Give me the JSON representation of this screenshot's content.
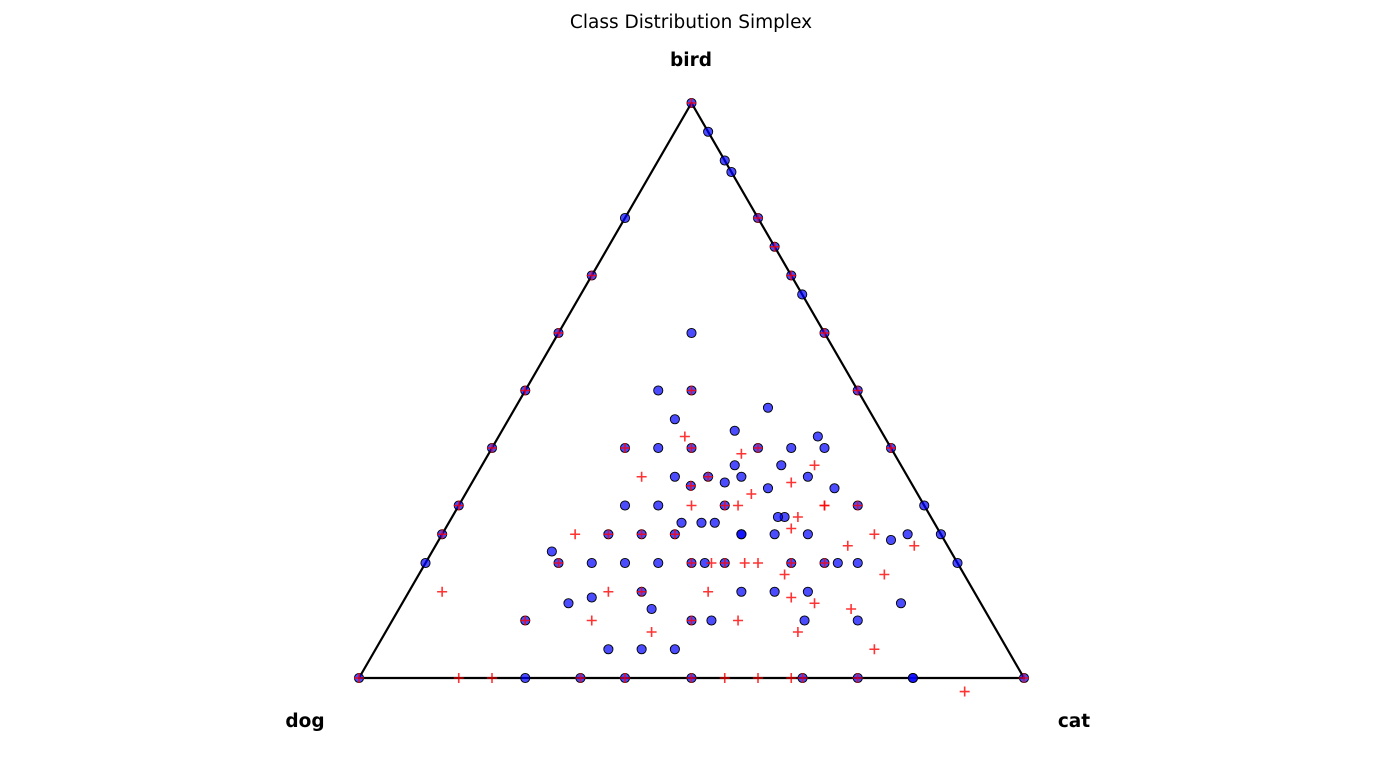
{
  "chart_data": {
    "type": "scatter",
    "plot": "ternary",
    "title": "Class Distribution Simplex",
    "vertices": {
      "top": "bird",
      "left": "dog",
      "right": "cat"
    },
    "coordinate_order": [
      "dog",
      "cat",
      "bird"
    ],
    "colors": {
      "circle_fill": "#0000ff",
      "circle_edge": "#000000",
      "cross": "#ff0000",
      "edge": "#000000"
    },
    "series": [
      {
        "marker": "circle",
        "points": [
          [
            0,
            0,
            1
          ],
          [
            0.5,
            0,
            0.5
          ],
          [
            0.4,
            0,
            0.6
          ],
          [
            0.2,
            0,
            0.8
          ],
          [
            0.3,
            0,
            0.7
          ],
          [
            0.7,
            0,
            0.3
          ],
          [
            0.75,
            0,
            0.25
          ],
          [
            0.6,
            0,
            0.4
          ],
          [
            0.8,
            0,
            0.2
          ],
          [
            1,
            0,
            0
          ],
          [
            0.75,
            0.25,
            0
          ],
          [
            0.667,
            0.333,
            0
          ],
          [
            0.6,
            0.4,
            0
          ],
          [
            0.5,
            0.5,
            0
          ],
          [
            0.333,
            0.667,
            0
          ],
          [
            0.25,
            0.75,
            0
          ],
          [
            0.167,
            0.833,
            0
          ],
          [
            0,
            1,
            0
          ],
          [
            0,
            0.8,
            0.2
          ],
          [
            0,
            0.75,
            0.25
          ],
          [
            0,
            0.7,
            0.3
          ],
          [
            0,
            0.6,
            0.4
          ],
          [
            0,
            0.5,
            0.5
          ],
          [
            0,
            0.4,
            0.6
          ],
          [
            0,
            0.333,
            0.667
          ],
          [
            0,
            0.25,
            0.75
          ],
          [
            0,
            0.2,
            0.8
          ],
          [
            0.167,
            0.833,
            0
          ],
          [
            0,
            0.3,
            0.7
          ],
          [
            0,
            0.1,
            0.9
          ],
          [
            0,
            0.05,
            0.95
          ],
          [
            0,
            0.12,
            0.88
          ],
          [
            0.25,
            0.25,
            0.5
          ],
          [
            0.2,
            0.4,
            0.4
          ],
          [
            0.333,
            0.333,
            0.333
          ],
          [
            0.4,
            0.4,
            0.2
          ],
          [
            0.6,
            0.2,
            0.2
          ],
          [
            0.7,
            0.2,
            0.1
          ],
          [
            0.4,
            0.2,
            0.4
          ],
          [
            0.5,
            0.25,
            0.25
          ],
          [
            0.3,
            0.3,
            0.4
          ],
          [
            0.1,
            0.5,
            0.4
          ],
          [
            0.2,
            0.2,
            0.6
          ],
          [
            0.3,
            0.2,
            0.5
          ],
          [
            0.15,
            0.45,
            0.4
          ],
          [
            0.25,
            0.5,
            0.25
          ],
          [
            0.45,
            0.35,
            0.2
          ],
          [
            0.35,
            0.45,
            0.2
          ],
          [
            0.5,
            0.45,
            0.05
          ],
          [
            0.3,
            0.45,
            0.25
          ],
          [
            0.2,
            0.55,
            0.25
          ],
          [
            0.1,
            0.6,
            0.3
          ],
          [
            0.15,
            0.65,
            0.2
          ],
          [
            0.25,
            0.6,
            0.15
          ],
          [
            0.35,
            0.5,
            0.15
          ],
          [
            0.2,
            0.6,
            0.2
          ],
          [
            0.22,
            0.5,
            0.28
          ],
          [
            0.28,
            0.38,
            0.34
          ],
          [
            0.4,
            0.3,
            0.3
          ],
          [
            0.33,
            0.4,
            0.27
          ],
          [
            0.5,
            0.3,
            0.2
          ],
          [
            0.6,
            0.35,
            0.05
          ],
          [
            0.45,
            0.45,
            0.1
          ],
          [
            0.5,
            0.38,
            0.12
          ],
          [
            0.55,
            0.4,
            0.05
          ],
          [
            0.12,
            0.75,
            0.13
          ],
          [
            0.2,
            0.7,
            0.1
          ],
          [
            0.18,
            0.62,
            0.2
          ],
          [
            0.3,
            0.55,
            0.15
          ],
          [
            0.38,
            0.42,
            0.2
          ],
          [
            0.42,
            0.48,
            0.1
          ],
          [
            0.28,
            0.62,
            0.1
          ],
          [
            0.3,
            0.35,
            0.35
          ],
          [
            0.45,
            0.25,
            0.3
          ],
          [
            0.25,
            0.4,
            0.35
          ],
          [
            0.35,
            0.3,
            0.35
          ],
          [
            0.4,
            0.35,
            0.25
          ],
          [
            0.55,
            0.25,
            0.2
          ],
          [
            0.35,
            0.38,
            0.27
          ],
          [
            0.3,
            0.4,
            0.3
          ],
          [
            0.22,
            0.45,
            0.33
          ],
          [
            0.12,
            0.55,
            0.33
          ],
          [
            0.25,
            0.55,
            0.2
          ],
          [
            0.38,
            0.35,
            0.27
          ],
          [
            0.45,
            0.3,
            0.25
          ],
          [
            0.5,
            0.35,
            0.15
          ],
          [
            0.62,
            0.25,
            0.13
          ],
          [
            0.3,
            0.45,
            0.25
          ],
          [
            0.22,
            0.35,
            0.43
          ],
          [
            0.15,
            0.38,
            0.47
          ],
          [
            0.18,
            0.45,
            0.37
          ],
          [
            0.3,
            0.25,
            0.45
          ],
          [
            0.25,
            0.38,
            0.37
          ],
          [
            0.6,
            0.18,
            0.22
          ],
          [
            0.35,
            0.25,
            0.4
          ],
          [
            0.58,
            0.28,
            0.14
          ],
          [
            0.23,
            0.49,
            0.28
          ],
          [
            0.08,
            0.68,
            0.24
          ],
          [
            0.05,
            0.7,
            0.25
          ],
          [
            0.15,
            0.5,
            0.35
          ],
          [
            0.1,
            0.48,
            0.42
          ]
        ]
      },
      {
        "marker": "cross",
        "points": [
          [
            0,
            0,
            1
          ],
          [
            0.5,
            0,
            0.5
          ],
          [
            0.4,
            0,
            0.6
          ],
          [
            0.3,
            0,
            0.7
          ],
          [
            0.7,
            0,
            0.3
          ],
          [
            0.6,
            0,
            0.4
          ],
          [
            0.75,
            0,
            0.25
          ],
          [
            1,
            0,
            0
          ],
          [
            0.5,
            0.5,
            0
          ],
          [
            0,
            1,
            0
          ],
          [
            0,
            0.5,
            0.5
          ],
          [
            0,
            0.6,
            0.4
          ],
          [
            0,
            0.4,
            0.6
          ],
          [
            0,
            0.3,
            0.7
          ],
          [
            0,
            0.25,
            0.75
          ],
          [
            0,
            0.2,
            0.8
          ],
          [
            0.8,
            0.2,
            0
          ],
          [
            0.667,
            0.333,
            0
          ],
          [
            0.6,
            0.4,
            0
          ],
          [
            0.4,
            0.6,
            0
          ],
          [
            0.333,
            0.667,
            0
          ],
          [
            0.25,
            0.75,
            0
          ],
          [
            0.45,
            0.55,
            0
          ],
          [
            0.85,
            0.15,
            0
          ],
          [
            0.35,
            0.65,
            0
          ],
          [
            0.2,
            0.75,
            0.05
          ],
          [
            0.25,
            0.25,
            0.5
          ],
          [
            0.333,
            0.333,
            0.333
          ],
          [
            0.3,
            0.3,
            0.4
          ],
          [
            0.4,
            0.4,
            0.2
          ],
          [
            0.5,
            0.25,
            0.25
          ],
          [
            0.6,
            0.2,
            0.2
          ],
          [
            0.2,
            0.4,
            0.4
          ],
          [
            0.7,
            0.2,
            0.1
          ],
          [
            0.4,
            0.2,
            0.4
          ],
          [
            0.3,
            0.4,
            0.3
          ],
          [
            0.35,
            0.35,
            0.3
          ],
          [
            0.45,
            0.45,
            0.1
          ],
          [
            0.5,
            0.35,
            0.15
          ],
          [
            0.55,
            0.3,
            0.15
          ],
          [
            0.3,
            0.5,
            0.2
          ],
          [
            0.25,
            0.55,
            0.2
          ],
          [
            0.2,
            0.6,
            0.2
          ],
          [
            0.15,
            0.55,
            0.3
          ],
          [
            0.1,
            0.6,
            0.3
          ],
          [
            0.12,
            0.7,
            0.18
          ],
          [
            0.2,
            0.68,
            0.12
          ],
          [
            0.25,
            0.62,
            0.13
          ],
          [
            0.28,
            0.58,
            0.14
          ],
          [
            0.3,
            0.62,
            0.08
          ],
          [
            0.4,
            0.45,
            0.15
          ],
          [
            0.35,
            0.45,
            0.2
          ],
          [
            0.22,
            0.52,
            0.26
          ],
          [
            0.18,
            0.48,
            0.34
          ],
          [
            0.28,
            0.42,
            0.3
          ],
          [
            0.05,
            0.72,
            0.23
          ],
          [
            0.1,
            0.65,
            0.25
          ],
          [
            0.6,
            0.3,
            0.1
          ],
          [
            0.12,
            0.9,
            0
          ],
          [
            0.15,
            0.55,
            0.3
          ],
          [
            0.8,
            0.05,
            0.15
          ],
          [
            0.55,
            0.2,
            0.25
          ],
          [
            0.45,
            0.3,
            0.25
          ],
          [
            0.4,
            0.25,
            0.35
          ],
          [
            0.4,
            0.35,
            0.25
          ],
          [
            0.3,
            0.35,
            0.35
          ],
          [
            0.25,
            0.43,
            0.32
          ],
          [
            0.32,
            0.48,
            0.2
          ],
          [
            0.15,
            0.62,
            0.23
          ],
          [
            0.2,
            0.52,
            0.28
          ],
          [
            0.3,
            0.28,
            0.42
          ],
          [
            0.37,
            0.43,
            0.2
          ],
          [
            0.13,
            0.5,
            0.37
          ],
          [
            0.52,
            0.4,
            0.08
          ],
          [
            0.23,
            0.38,
            0.39
          ],
          [
            0.38,
            0.52,
            0.1
          ],
          [
            0.27,
            0.55,
            0.18
          ]
        ]
      }
    ]
  }
}
